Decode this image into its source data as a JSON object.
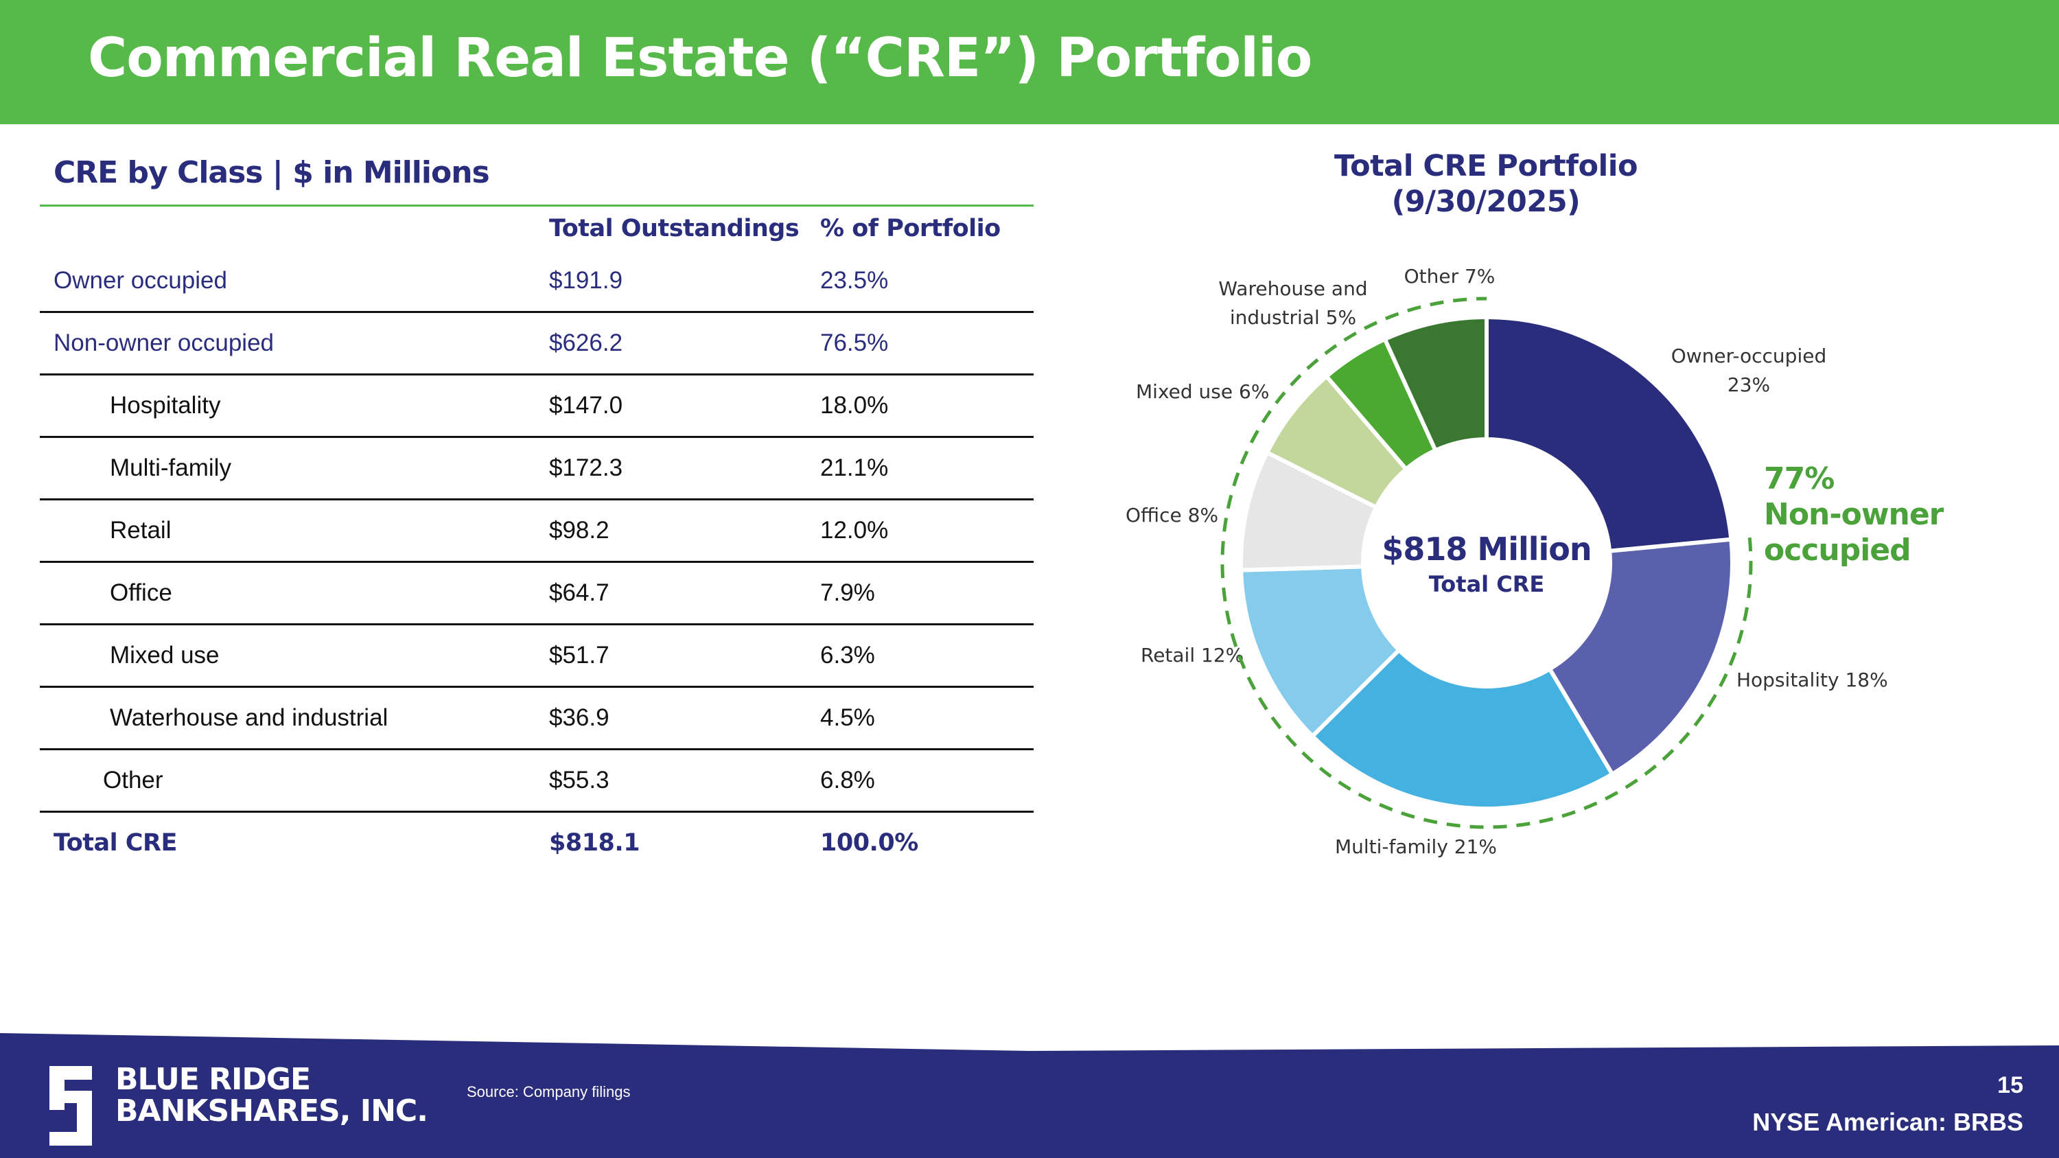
{
  "header": {
    "title": "Commercial Real Estate (“CRE”) Portfolio",
    "bg_color": "#57b94a"
  },
  "table": {
    "title": "CRE by Class | $ in Millions",
    "columns": [
      "Total Outstandings",
      "% of Portfolio"
    ],
    "rows": [
      {
        "label": "Owner occupied",
        "outstanding": "$191.9",
        "pct": "23.5%"
      },
      {
        "label": "Non-owner occupied",
        "outstanding": "$626.2",
        "pct": "76.5%"
      },
      {
        "label": "Hospitality",
        "outstanding": "$147.0",
        "pct": "18.0%"
      },
      {
        "label": "Multi-family",
        "outstanding": "$172.3",
        "pct": "21.1%"
      },
      {
        "label": "Retail",
        "outstanding": "$98.2",
        "pct": "12.0%"
      },
      {
        "label": "Office",
        "outstanding": "$64.7",
        "pct": "7.9%"
      },
      {
        "label": "Mixed use",
        "outstanding": "$51.7",
        "pct": "6.3%"
      },
      {
        "label": "Waterhouse and industrial",
        "outstanding": "$36.9",
        "pct": "4.5%"
      },
      {
        "label": "Other",
        "outstanding": "$55.3",
        "pct": "6.8%"
      },
      {
        "label": "Total CRE",
        "outstanding": "$818.1",
        "pct": "100.0%"
      }
    ]
  },
  "chart_data": {
    "type": "pie",
    "title": "Total CRE Portfolio",
    "subtitle": "(9/30/2025)",
    "center_value": "$818 Million",
    "center_label": "Total CRE",
    "highlight": {
      "pct": "77%",
      "line1": "Non-owner",
      "line2": "occupied",
      "color": "#4ba23a"
    },
    "slices": [
      {
        "name": "Owner-occupied",
        "value": 23.5,
        "label1": "Owner-occupied",
        "label2": "23%",
        "color": "#2a2d7c"
      },
      {
        "name": "Hospitality",
        "value": 18.0,
        "label1": "Hopsitality 18%",
        "label2": "",
        "color": "#5a60ac"
      },
      {
        "name": "Multi-family",
        "value": 21.1,
        "label1": "Multi-family 21%",
        "label2": "",
        "color": "#45b1e0"
      },
      {
        "name": "Retail",
        "value": 12.0,
        "label1": "Retail 12%",
        "label2": "",
        "color": "#84cbec"
      },
      {
        "name": "Office",
        "value": 7.9,
        "label1": "Office 8%",
        "label2": "",
        "color": "#e6e6e6"
      },
      {
        "name": "Mixed use",
        "value": 6.3,
        "label1": "Mixed use 6%",
        "label2": "",
        "color": "#c3d69b"
      },
      {
        "name": "Warehouse and industrial",
        "value": 4.5,
        "label1": "Warehouse and",
        "label2": "industrial 5%",
        "color": "#4ba830"
      },
      {
        "name": "Other",
        "value": 6.8,
        "label1": "Other 7%",
        "label2": "",
        "color": "#3a7832"
      }
    ]
  },
  "footer": {
    "company_line1": "BLUE RIDGE",
    "company_line2": "BANKSHARES, INC.",
    "source": "Source: Company filings",
    "page": "15",
    "ticker": "NYSE American: BRBS",
    "bg_color": "#2a2d7c"
  }
}
